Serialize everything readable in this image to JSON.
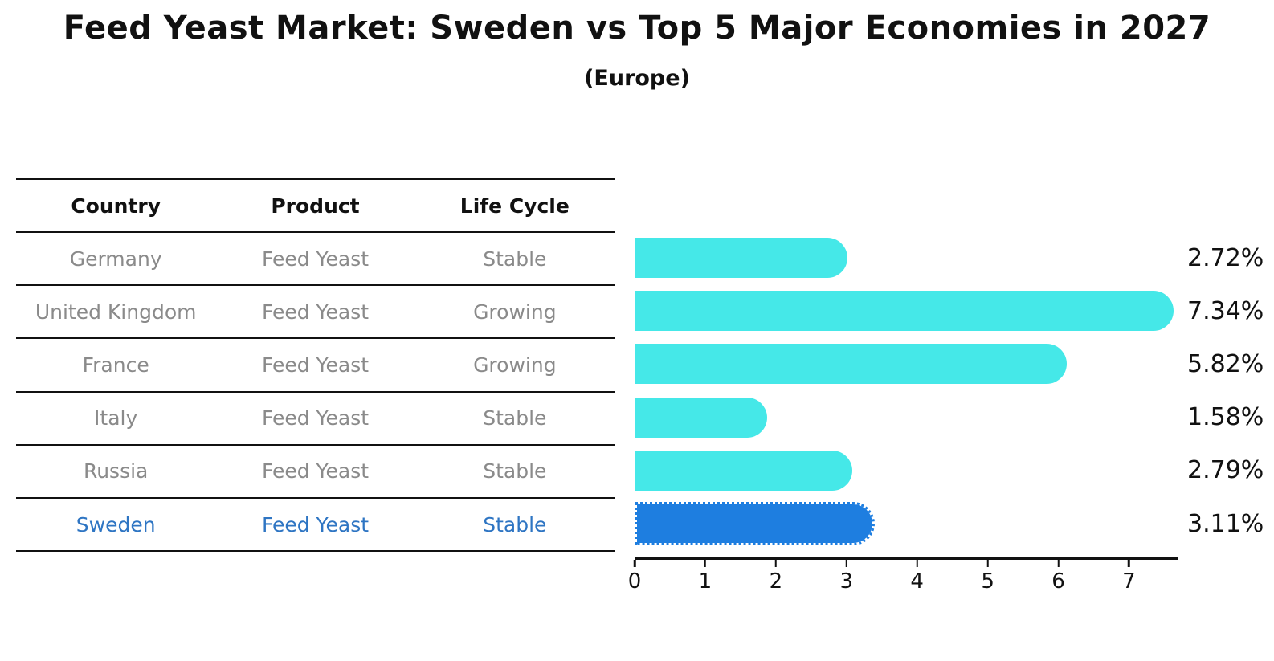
{
  "title": "Feed Yeast Market: Sweden vs Top 5 Major Economies in 2027",
  "subtitle": "(Europe)",
  "table": {
    "headers": [
      "Country",
      "Product",
      "Life Cycle"
    ],
    "rows": [
      {
        "country": "Germany",
        "product": "Feed Yeast",
        "life_cycle": "Stable",
        "highlight": false
      },
      {
        "country": "United Kingdom",
        "product": "Feed Yeast",
        "life_cycle": "Growing",
        "highlight": false
      },
      {
        "country": "France",
        "product": "Feed Yeast",
        "life_cycle": "Growing",
        "highlight": false
      },
      {
        "country": "Italy",
        "product": "Feed Yeast",
        "life_cycle": "Stable",
        "highlight": false
      },
      {
        "country": "Russia",
        "product": "Feed Yeast",
        "life_cycle": "Stable",
        "highlight": false
      },
      {
        "country": "Sweden",
        "product": "Feed Yeast",
        "life_cycle": "Stable",
        "highlight": true
      }
    ]
  },
  "chart_data": {
    "type": "bar",
    "orientation": "horizontal",
    "title": "Feed Yeast Market: Sweden vs Top 5 Major Economies in 2027",
    "subtitle": "(Europe)",
    "categories": [
      "Germany",
      "United Kingdom",
      "France",
      "Italy",
      "Russia",
      "Sweden"
    ],
    "values": [
      2.72,
      7.34,
      5.82,
      1.58,
      2.79,
      3.11
    ],
    "value_labels": [
      "2.72%",
      "7.34%",
      "5.82%",
      "1.58%",
      "2.79%",
      "3.11%"
    ],
    "xlabel": "",
    "ylabel": "",
    "xlim": [
      0,
      7.7
    ],
    "xticks": [
      0,
      1,
      2,
      3,
      4,
      5,
      6,
      7
    ],
    "grid": false,
    "legend": "none",
    "bar_color": "#45e8e8",
    "highlight_color": "#1e7ee0",
    "highlight_index": 5
  },
  "colors": {
    "bar": "#45e8e8",
    "highlight_bar": "#1e7ee0",
    "highlight_text": "#2e75c3",
    "row_text": "#8a8a8a",
    "header_text": "#111111",
    "axis": "#111111"
  }
}
